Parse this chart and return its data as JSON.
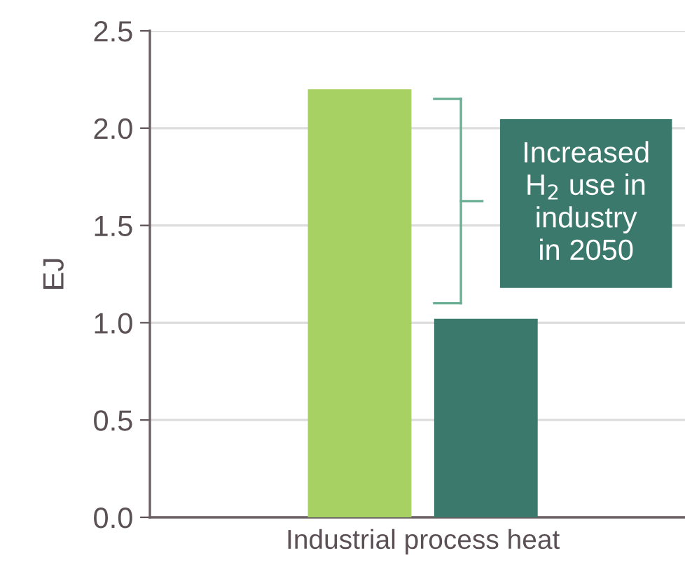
{
  "chart_data": {
    "type": "bar",
    "categories": [
      "Industrial process heat"
    ],
    "series": [
      {
        "color": "#a8d164",
        "values": [
          2.2
        ]
      },
      {
        "color": "#3a796c",
        "values": [
          1.02
        ]
      }
    ],
    "ylabel": "EJ",
    "ylim": [
      0,
      2.5
    ],
    "yticks": [
      {
        "value": 0,
        "label": "0.0"
      },
      {
        "value": 0.5,
        "label": "0.5"
      },
      {
        "value": 1,
        "label": "1.0"
      },
      {
        "value": 1.5,
        "label": "1.5"
      },
      {
        "value": 2,
        "label": "2.0"
      },
      {
        "value": 2.5,
        "label": "2.5"
      }
    ],
    "grid": "y",
    "legend": false,
    "annotations": [
      "Increased\nH$_{2}$ use in\nindustry\nin 2050"
    ]
  }
}
